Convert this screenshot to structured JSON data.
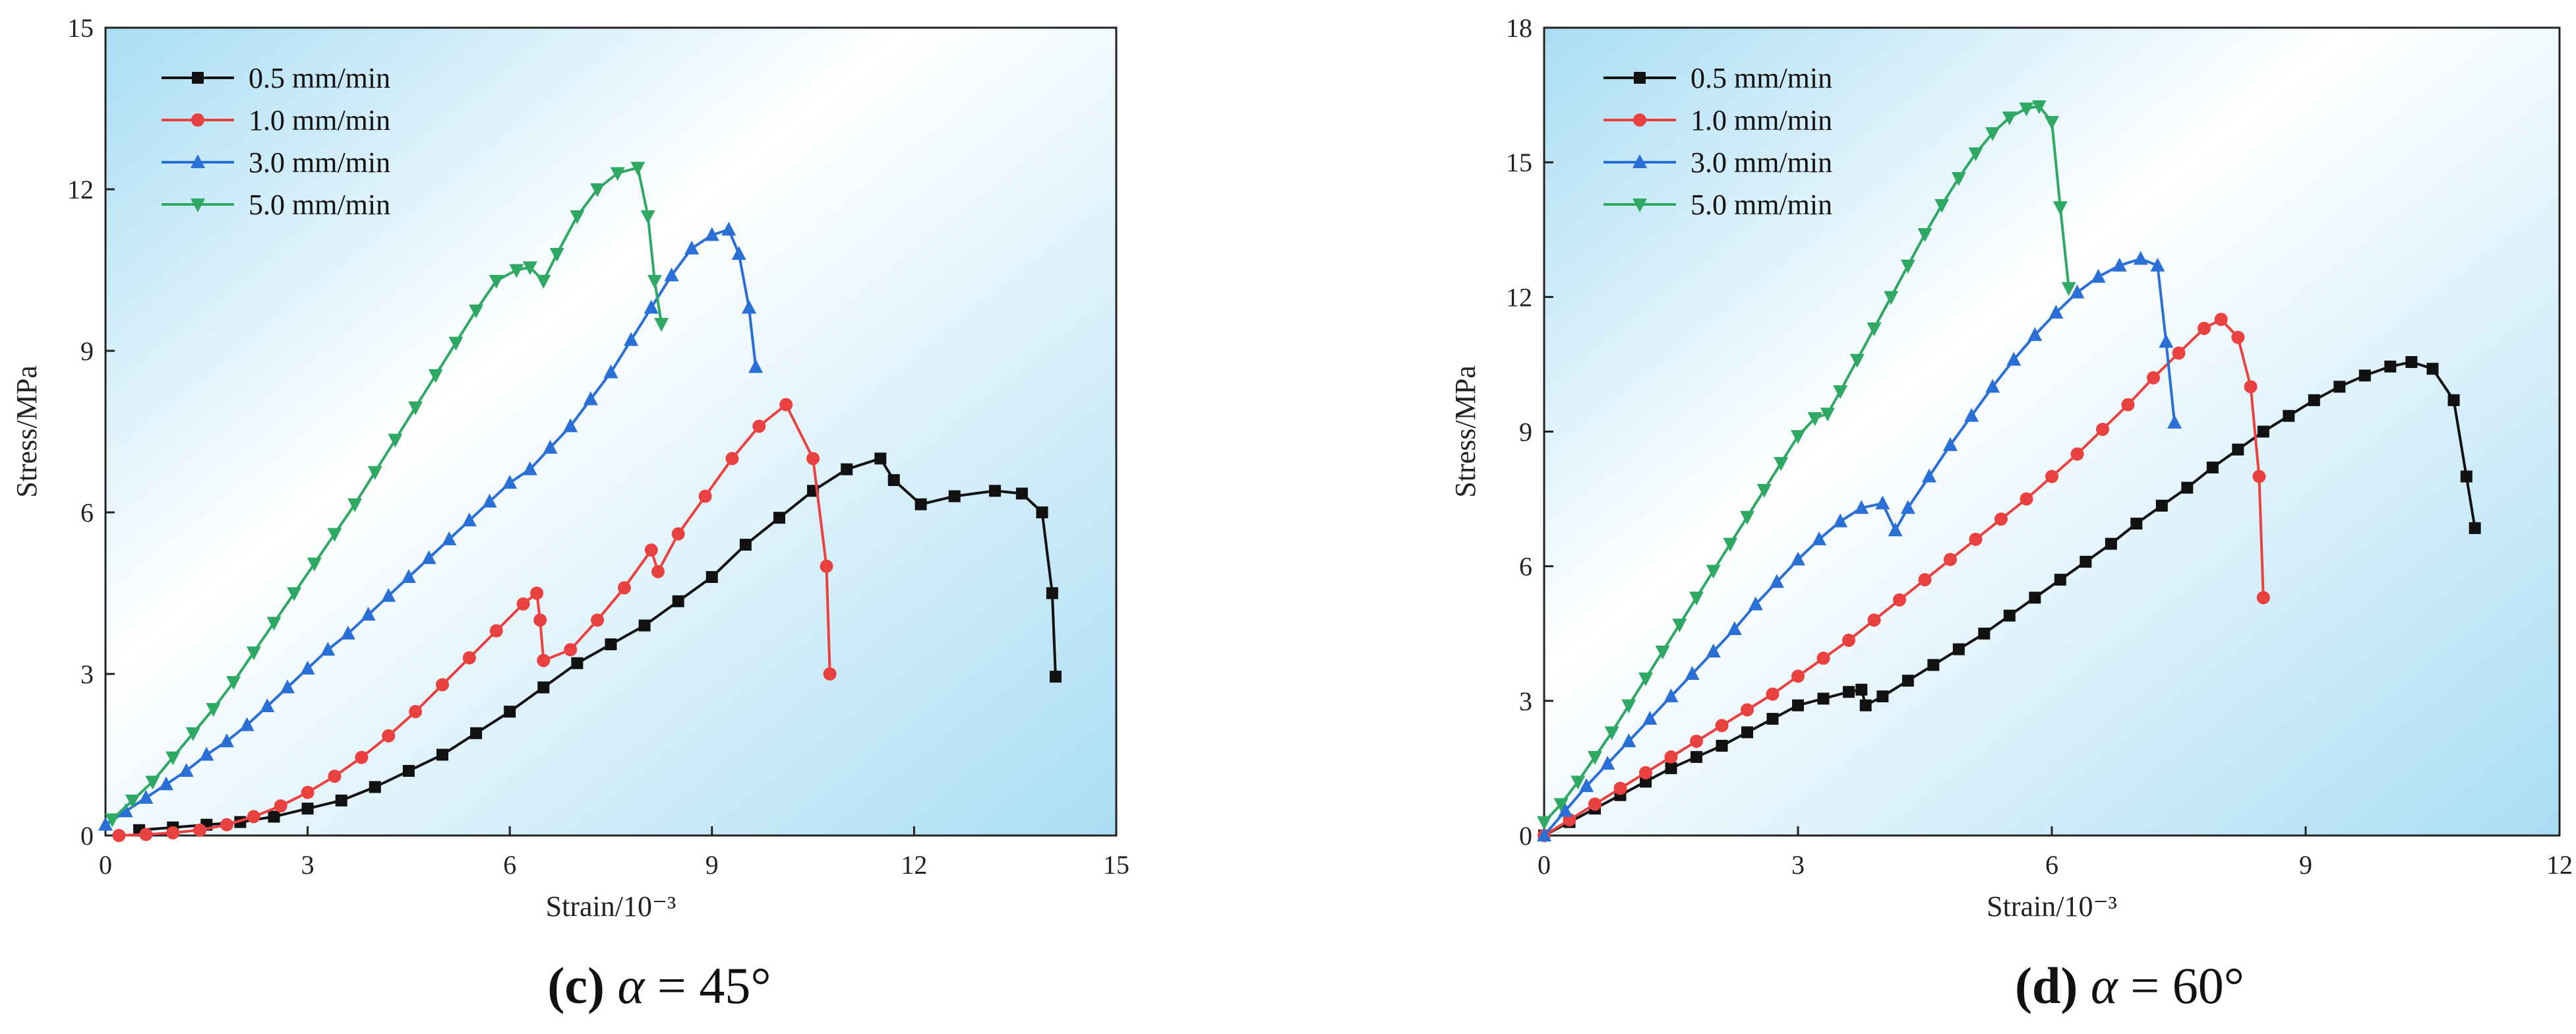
{
  "colors": {
    "s05": "#111111",
    "s10": "#e8413f",
    "s30": "#2a6fd6",
    "s50": "#2fa864",
    "bg_light": "#ffffff",
    "bg_blue": "#b9e6f7"
  },
  "captions": [
    {
      "letter": "(c)",
      "alpha": "α",
      "rest": " = 45°"
    },
    {
      "letter": "(d)",
      "alpha": "α",
      "rest": " = 60°"
    }
  ],
  "chart_data": [
    {
      "type": "line",
      "id": "c",
      "xlabel": "Strain/10⁻³",
      "ylabel": "Stress/MPa",
      "xlim": [
        0,
        15
      ],
      "ylim": [
        0,
        15
      ],
      "xticks": [
        0,
        3,
        6,
        9,
        12,
        15
      ],
      "yticks": [
        0,
        3,
        6,
        9,
        12,
        15
      ],
      "xtick_labels": [
        "0",
        "3",
        "6",
        "9",
        "12",
        "15"
      ],
      "ytick_labels": [
        "0",
        "3",
        "6",
        "9",
        "12",
        "15"
      ],
      "legend": "top-left",
      "series": [
        {
          "name": "0.5 mm/min",
          "color_key": "s05",
          "marker": "square",
          "x": [
            0.5,
            1.0,
            1.5,
            2.0,
            2.5,
            3.0,
            3.5,
            4.0,
            4.5,
            5.0,
            5.5,
            6.0,
            6.5,
            7.0,
            7.5,
            8.0,
            8.5,
            9.0,
            9.5,
            10.0,
            10.5,
            11.0,
            11.5,
            11.7,
            12.1,
            12.6,
            13.2,
            13.6,
            13.9,
            14.05,
            14.1
          ],
          "y": [
            0.1,
            0.15,
            0.2,
            0.25,
            0.35,
            0.5,
            0.65,
            0.9,
            1.2,
            1.5,
            1.9,
            2.3,
            2.75,
            3.2,
            3.55,
            3.9,
            4.35,
            4.8,
            5.4,
            5.9,
            6.4,
            6.8,
            7.0,
            6.6,
            6.15,
            6.3,
            6.4,
            6.35,
            6.0,
            4.5,
            2.95
          ]
        },
        {
          "name": "1.0 mm/min",
          "color_key": "s10",
          "marker": "circle",
          "x": [
            0.2,
            0.6,
            1.0,
            1.4,
            1.8,
            2.2,
            2.6,
            3.0,
            3.4,
            3.8,
            4.2,
            4.6,
            5.0,
            5.4,
            5.8,
            6.2,
            6.4,
            6.45,
            6.5,
            6.9,
            7.3,
            7.7,
            8.1,
            8.2,
            8.5,
            8.9,
            9.3,
            9.7,
            10.1,
            10.5,
            10.7,
            10.75
          ],
          "y": [
            0.0,
            0.02,
            0.05,
            0.1,
            0.2,
            0.35,
            0.55,
            0.8,
            1.1,
            1.45,
            1.85,
            2.3,
            2.8,
            3.3,
            3.8,
            4.3,
            4.5,
            4.0,
            3.25,
            3.45,
            4.0,
            4.6,
            5.3,
            4.9,
            5.6,
            6.3,
            7.0,
            7.6,
            8.0,
            7.0,
            5.0,
            3.0
          ]
        },
        {
          "name": "3.0 mm/min",
          "color_key": "s30",
          "marker": "triangle-up",
          "x": [
            0.0,
            0.3,
            0.6,
            0.9,
            1.2,
            1.5,
            1.8,
            2.1,
            2.4,
            2.7,
            3.0,
            3.3,
            3.6,
            3.9,
            4.2,
            4.5,
            4.8,
            5.1,
            5.4,
            5.7,
            6.0,
            6.3,
            6.6,
            6.9,
            7.2,
            7.5,
            7.8,
            8.1,
            8.4,
            8.7,
            9.0,
            9.25,
            9.4,
            9.55,
            9.65
          ],
          "y": [
            0.2,
            0.45,
            0.7,
            0.95,
            1.2,
            1.5,
            1.75,
            2.05,
            2.4,
            2.75,
            3.1,
            3.45,
            3.75,
            4.1,
            4.45,
            4.8,
            5.15,
            5.5,
            5.85,
            6.2,
            6.55,
            6.8,
            7.2,
            7.6,
            8.1,
            8.6,
            9.2,
            9.8,
            10.4,
            10.9,
            11.15,
            11.25,
            10.8,
            9.8,
            8.7
          ]
        },
        {
          "name": "5.0 mm/min",
          "color_key": "s50",
          "marker": "triangle-down",
          "x": [
            0.1,
            0.4,
            0.7,
            1.0,
            1.3,
            1.6,
            1.9,
            2.2,
            2.5,
            2.8,
            3.1,
            3.4,
            3.7,
            4.0,
            4.3,
            4.6,
            4.9,
            5.2,
            5.5,
            5.8,
            6.1,
            6.3,
            6.5,
            6.7,
            7.0,
            7.3,
            7.6,
            7.9,
            8.05,
            8.15,
            8.25
          ],
          "y": [
            0.3,
            0.65,
            1.0,
            1.45,
            1.9,
            2.35,
            2.85,
            3.4,
            3.95,
            4.5,
            5.05,
            5.6,
            6.15,
            6.75,
            7.35,
            7.95,
            8.55,
            9.15,
            9.75,
            10.3,
            10.5,
            10.55,
            10.3,
            10.8,
            11.5,
            12.0,
            12.3,
            12.4,
            11.5,
            10.3,
            9.5
          ]
        }
      ]
    },
    {
      "type": "line",
      "id": "d",
      "xlabel": "Strain/10⁻³",
      "ylabel": "Stress/MPa",
      "xlim": [
        0,
        12
      ],
      "ylim": [
        0,
        18
      ],
      "xticks": [
        0,
        3,
        6,
        9,
        12
      ],
      "yticks": [
        0,
        3,
        6,
        9,
        12,
        15,
        18
      ],
      "xtick_labels": [
        "0",
        "3",
        "6",
        "9",
        "12"
      ],
      "ytick_labels": [
        "0",
        "3",
        "6",
        "9",
        "12",
        "15",
        "18"
      ],
      "legend": "top-left",
      "series": [
        {
          "name": "0.5 mm/min",
          "color_key": "s05",
          "marker": "square",
          "x": [
            0.0,
            0.3,
            0.6,
            0.9,
            1.2,
            1.5,
            1.8,
            2.1,
            2.4,
            2.7,
            3.0,
            3.3,
            3.6,
            3.75,
            3.8,
            4.0,
            4.3,
            4.6,
            4.9,
            5.2,
            5.5,
            5.8,
            6.1,
            6.4,
            6.7,
            7.0,
            7.3,
            7.6,
            7.9,
            8.2,
            8.5,
            8.8,
            9.1,
            9.4,
            9.7,
            10.0,
            10.25,
            10.5,
            10.75,
            10.9,
            11.0
          ],
          "y": [
            0.0,
            0.3,
            0.6,
            0.9,
            1.2,
            1.5,
            1.75,
            2.0,
            2.3,
            2.6,
            2.9,
            3.05,
            3.2,
            3.25,
            2.9,
            3.1,
            3.45,
            3.8,
            4.15,
            4.5,
            4.9,
            5.3,
            5.7,
            6.1,
            6.5,
            6.95,
            7.35,
            7.75,
            8.2,
            8.6,
            9.0,
            9.35,
            9.7,
            10.0,
            10.25,
            10.45,
            10.55,
            10.4,
            9.7,
            8.0,
            6.85
          ]
        },
        {
          "name": "1.0 mm/min",
          "color_key": "s10",
          "marker": "circle",
          "x": [
            0.0,
            0.3,
            0.6,
            0.9,
            1.2,
            1.5,
            1.8,
            2.1,
            2.4,
            2.7,
            3.0,
            3.3,
            3.6,
            3.9,
            4.2,
            4.5,
            4.8,
            5.1,
            5.4,
            5.7,
            6.0,
            6.3,
            6.6,
            6.9,
            7.2,
            7.5,
            7.8,
            8.0,
            8.2,
            8.35,
            8.45,
            8.5
          ],
          "y": [
            0.0,
            0.35,
            0.7,
            1.05,
            1.4,
            1.75,
            2.1,
            2.45,
            2.8,
            3.15,
            3.55,
            3.95,
            4.35,
            4.8,
            5.25,
            5.7,
            6.15,
            6.6,
            7.05,
            7.5,
            8.0,
            8.5,
            9.05,
            9.6,
            10.2,
            10.75,
            11.3,
            11.5,
            11.1,
            10.0,
            8.0,
            5.3
          ]
        },
        {
          "name": "3.0 mm/min",
          "color_key": "s30",
          "marker": "triangle-up",
          "x": [
            0.0,
            0.25,
            0.5,
            0.75,
            1.0,
            1.25,
            1.5,
            1.75,
            2.0,
            2.25,
            2.5,
            2.75,
            3.0,
            3.25,
            3.5,
            3.75,
            4.0,
            4.15,
            4.3,
            4.55,
            4.8,
            5.05,
            5.3,
            5.55,
            5.8,
            6.05,
            6.3,
            6.55,
            6.8,
            7.05,
            7.25,
            7.35,
            7.45
          ],
          "y": [
            0.0,
            0.55,
            1.1,
            1.6,
            2.1,
            2.6,
            3.1,
            3.6,
            4.1,
            4.6,
            5.15,
            5.65,
            6.15,
            6.6,
            7.0,
            7.3,
            7.4,
            6.8,
            7.3,
            8.0,
            8.7,
            9.35,
            10.0,
            10.6,
            11.15,
            11.65,
            12.1,
            12.45,
            12.7,
            12.85,
            12.7,
            11.0,
            9.2
          ]
        },
        {
          "name": "5.0 mm/min",
          "color_key": "s50",
          "marker": "triangle-down",
          "x": [
            0.0,
            0.2,
            0.4,
            0.6,
            0.8,
            1.0,
            1.2,
            1.4,
            1.6,
            1.8,
            2.0,
            2.2,
            2.4,
            2.6,
            2.8,
            3.0,
            3.2,
            3.35,
            3.5,
            3.7,
            3.9,
            4.1,
            4.3,
            4.5,
            4.7,
            4.9,
            5.1,
            5.3,
            5.5,
            5.7,
            5.85,
            6.0,
            6.1,
            6.2
          ],
          "y": [
            0.3,
            0.7,
            1.2,
            1.75,
            2.3,
            2.9,
            3.5,
            4.1,
            4.7,
            5.3,
            5.9,
            6.5,
            7.1,
            7.7,
            8.3,
            8.9,
            9.3,
            9.4,
            9.9,
            10.6,
            11.3,
            12.0,
            12.7,
            13.4,
            14.05,
            14.65,
            15.2,
            15.65,
            16.0,
            16.2,
            16.25,
            15.9,
            14.0,
            12.2
          ]
        }
      ]
    }
  ]
}
